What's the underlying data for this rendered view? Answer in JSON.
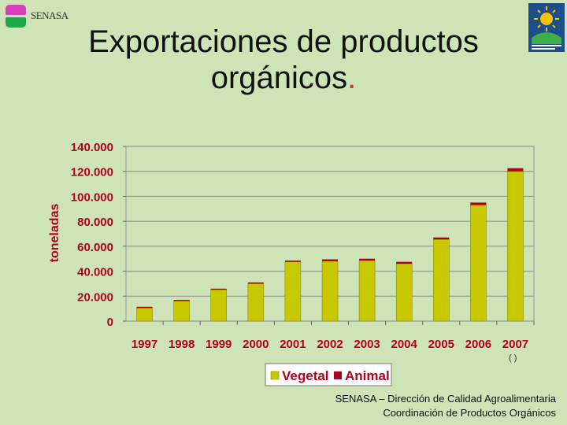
{
  "header": {
    "logo_text": "SENASA",
    "title_line1": "Exportaciones de productos",
    "title_line2": "orgánicos",
    "title_dot": "."
  },
  "colors": {
    "background": "#cfe4b6",
    "vegetal": "#c8c800",
    "animal": "#b00020",
    "axis_text": "#b0001e"
  },
  "chart_data": {
    "type": "bar",
    "stacked": true,
    "categories": [
      "1997",
      "1998",
      "1999",
      "2000",
      "2001",
      "2002",
      "2003",
      "2004",
      "2005",
      "2006",
      "2007"
    ],
    "series": [
      {
        "name": "Vegetal",
        "color": "#c8c800",
        "values": [
          10500,
          16500,
          25500,
          30000,
          47500,
          48000,
          48500,
          46000,
          65500,
          93000,
          120000
        ]
      },
      {
        "name": "Animal",
        "color": "#b00020",
        "values": [
          1000,
          500,
          500,
          1000,
          1000,
          1500,
          1500,
          1500,
          1500,
          2000,
          2500
        ]
      }
    ],
    "ylabel": "toneladas",
    "ylim": [
      0,
      140000
    ],
    "yticks": [
      "0",
      "20.000",
      "40.000",
      "60.000",
      "80.000",
      "100.000",
      "120.000",
      "140.000"
    ],
    "grid": true,
    "legend": "bottom",
    "annotation": "( )"
  },
  "footer": {
    "line1": "SENASA – Dirección de Calidad Agroalimentaria",
    "line2": "Coordinación de Productos Orgánicos"
  }
}
